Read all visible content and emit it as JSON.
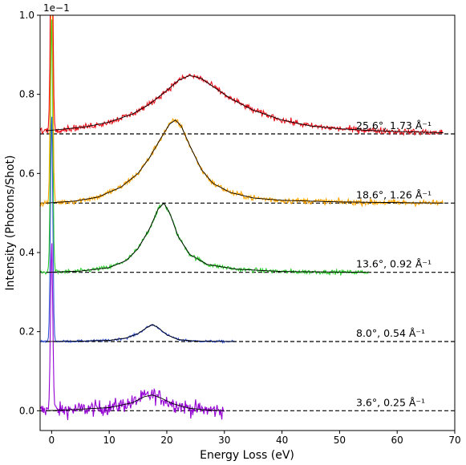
{
  "chart_data": {
    "type": "line",
    "title": "",
    "xlabel": "Energy Loss (eV)",
    "ylabel": "Intensity (Photons/Shot)",
    "y_scale_label": "1e−1",
    "xlim": [
      -2,
      70
    ],
    "ylim": [
      -0.05,
      1.0
    ],
    "x_ticks": [
      0,
      10,
      20,
      30,
      40,
      50,
      60,
      70
    ],
    "y_ticks": [
      0.0,
      0.2,
      0.4,
      0.6,
      0.8,
      1.0
    ],
    "grid": false,
    "legend": "none",
    "baseline_style": "black dashed",
    "series": [
      {
        "label": "3.6°, 0.25 Å⁻¹",
        "color": "#9400d3",
        "baseline": 0.0,
        "x_end": 30,
        "noise": 0.028,
        "elastic_peak_height": 0.42,
        "fit": [
          [
            -1,
            0.0
          ],
          [
            4,
            0.003
          ],
          [
            10,
            0.008
          ],
          [
            14,
            0.02
          ],
          [
            16,
            0.035
          ],
          [
            17.5,
            0.04
          ],
          [
            19,
            0.032
          ],
          [
            21,
            0.018
          ],
          [
            24,
            0.006
          ],
          [
            27,
            0.002
          ],
          [
            30,
            0.0
          ]
        ]
      },
      {
        "label": "8.0°, 0.54 Å⁻¹",
        "color": "#2f4fd8",
        "baseline": 0.175,
        "x_end": 32,
        "noise": 0.004,
        "elastic_peak_height": 0.58,
        "fit": [
          [
            -1,
            0.175
          ],
          [
            5,
            0.176
          ],
          [
            10,
            0.178
          ],
          [
            13,
            0.184
          ],
          [
            15,
            0.195
          ],
          [
            16.5,
            0.21
          ],
          [
            17.5,
            0.218
          ],
          [
            18.5,
            0.21
          ],
          [
            20,
            0.192
          ],
          [
            22,
            0.18
          ],
          [
            25,
            0.176
          ],
          [
            32,
            0.175
          ]
        ]
      },
      {
        "label": "13.6°, 0.92 Å⁻¹",
        "color": "#2ecc2e",
        "baseline": 0.35,
        "x_end": 55,
        "noise": 0.008,
        "elastic_peak_height": 0.65,
        "fit": [
          [
            -1,
            0.35
          ],
          [
            5,
            0.353
          ],
          [
            10,
            0.362
          ],
          [
            13,
            0.38
          ],
          [
            15,
            0.41
          ],
          [
            17,
            0.46
          ],
          [
            18.5,
            0.51
          ],
          [
            19.5,
            0.525
          ],
          [
            20.5,
            0.5
          ],
          [
            22,
            0.44
          ],
          [
            24,
            0.395
          ],
          [
            27,
            0.37
          ],
          [
            32,
            0.358
          ],
          [
            40,
            0.352
          ],
          [
            55,
            0.35
          ]
        ]
      },
      {
        "label": "18.6°, 1.26 Å⁻¹",
        "color": "#ffa500",
        "baseline": 0.525,
        "x_end": 68,
        "noise": 0.011,
        "elastic_peak_height": 0.65,
        "fit": [
          [
            -1,
            0.525
          ],
          [
            4,
            0.53
          ],
          [
            8,
            0.54
          ],
          [
            12,
            0.565
          ],
          [
            15,
            0.6
          ],
          [
            17,
            0.64
          ],
          [
            19,
            0.69
          ],
          [
            20.5,
            0.725
          ],
          [
            21.5,
            0.735
          ],
          [
            22.5,
            0.72
          ],
          [
            24,
            0.67
          ],
          [
            26,
            0.61
          ],
          [
            28,
            0.575
          ],
          [
            31,
            0.552
          ],
          [
            35,
            0.538
          ],
          [
            40,
            0.532
          ],
          [
            50,
            0.528
          ],
          [
            68,
            0.525
          ]
        ]
      },
      {
        "label": "25.6°, 1.73 Å⁻¹",
        "color": "#e8101a",
        "baseline": 0.7,
        "x_end": 68,
        "noise": 0.011,
        "elastic_peak_height": 0.62,
        "fit": [
          [
            -1,
            0.708
          ],
          [
            2,
            0.712
          ],
          [
            6,
            0.718
          ],
          [
            10,
            0.73
          ],
          [
            14,
            0.75
          ],
          [
            17,
            0.775
          ],
          [
            20,
            0.81
          ],
          [
            22,
            0.835
          ],
          [
            24,
            0.848
          ],
          [
            26,
            0.84
          ],
          [
            28,
            0.82
          ],
          [
            31,
            0.79
          ],
          [
            35,
            0.76
          ],
          [
            40,
            0.735
          ],
          [
            45,
            0.72
          ],
          [
            50,
            0.713
          ],
          [
            55,
            0.709
          ],
          [
            60,
            0.706
          ],
          [
            68,
            0.703
          ]
        ]
      }
    ]
  }
}
